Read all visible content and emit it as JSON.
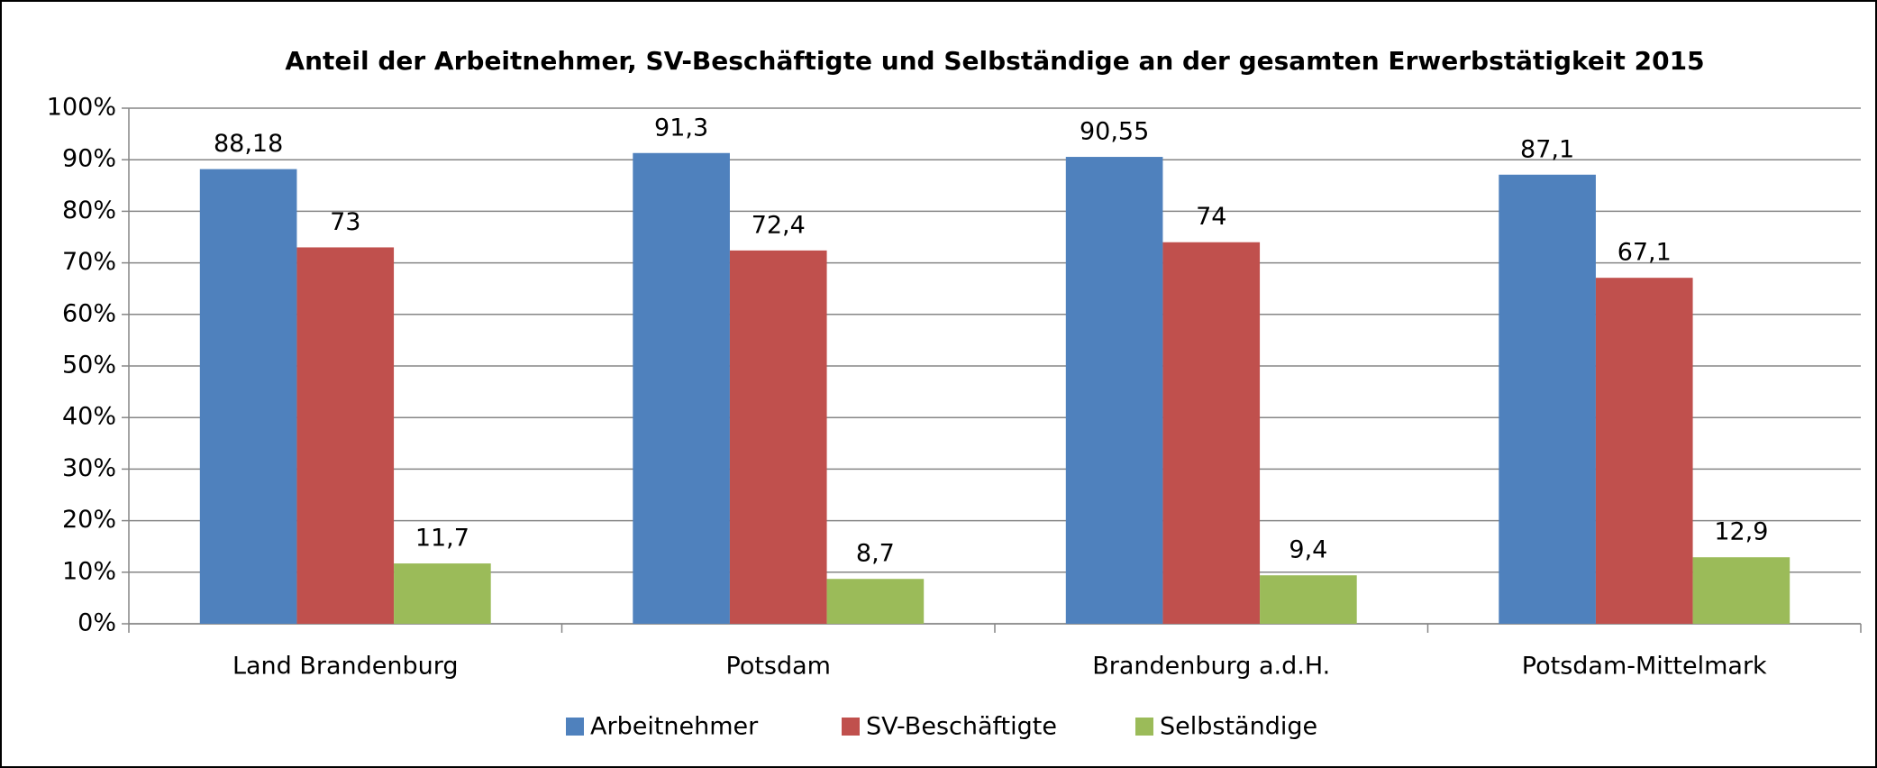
{
  "chart_data": {
    "type": "bar",
    "title": "Anteil der Arbeitnehmer, SV-Beschäftigte und Selbständige an der gesamten Erwerbstätigkeit 2015",
    "categories": [
      "Land Brandenburg",
      "Potsdam",
      "Brandenburg a.d.H.",
      "Potsdam-Mittelmark"
    ],
    "series": [
      {
        "name": "Arbeitnehmer",
        "color": "#4f81bd",
        "values": [
          88.18,
          91.3,
          90.55,
          87.1
        ],
        "value_labels": [
          "88,18",
          "91,3",
          "90,55",
          "87,1"
        ]
      },
      {
        "name": "SV-Beschäftigte",
        "color": "#c0504d",
        "values": [
          73,
          72.4,
          74,
          67.1
        ],
        "value_labels": [
          "73",
          "72,4",
          "74",
          "67,1"
        ]
      },
      {
        "name": "Selbständige",
        "color": "#9bbb59",
        "values": [
          11.7,
          8.7,
          9.4,
          12.9
        ],
        "value_labels": [
          "11,7",
          "8,7",
          "9,4",
          "12,9"
        ]
      }
    ],
    "ylim": [
      0,
      100
    ],
    "yticks": [
      {
        "value": 0,
        "label": "0%"
      },
      {
        "value": 10,
        "label": "10%"
      },
      {
        "value": 20,
        "label": "20%"
      },
      {
        "value": 30,
        "label": "30%"
      },
      {
        "value": 40,
        "label": "40%"
      },
      {
        "value": 50,
        "label": "50%"
      },
      {
        "value": 60,
        "label": "60%"
      },
      {
        "value": 70,
        "label": "70%"
      },
      {
        "value": 80,
        "label": "80%"
      },
      {
        "value": 90,
        "label": "90%"
      },
      {
        "value": 100,
        "label": "100%"
      }
    ],
    "grid": true,
    "legend": "bottom"
  }
}
